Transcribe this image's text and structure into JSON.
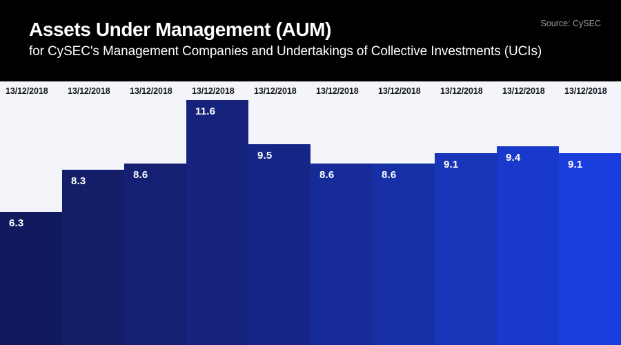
{
  "header": {
    "title": "Assets Under Management (AUM)",
    "subtitle": "for CySEC's Management Companies and Undertakings of Collective Investments (UCIs)",
    "source": "Source: CySEC",
    "background_color": "#000000",
    "text_color": "#ffffff",
    "source_color": "#9b9ea6"
  },
  "chart_data": {
    "type": "bar",
    "title": "Assets Under Management (AUM)",
    "subtitle": "for CySEC's Management Companies and Undertakings of Collective Investments (UCIs)",
    "source": "Source: CySEC",
    "categories": [
      "13/12/2018",
      "13/12/2018",
      "13/12/2018",
      "13/12/2018",
      "13/12/2018",
      "13/12/2018",
      "13/12/2018",
      "13/12/2018",
      "13/12/2018",
      "13/12/2018"
    ],
    "values": [
      6.3,
      8.3,
      8.6,
      11.6,
      9.5,
      8.6,
      8.6,
      9.1,
      9.4,
      9.1
    ],
    "value_labels": [
      "6.3",
      "8.3",
      "8.6",
      "11.6",
      "9.5",
      "8.6",
      "8.6",
      "9.1",
      "9.4",
      "9.1"
    ],
    "bar_colors": [
      "#121a5e",
      "#131d68",
      "#142072",
      "#15237c",
      "#162687",
      "#162b97",
      "#172fa5",
      "#1834b7",
      "#1939ca",
      "#1a3edd"
    ],
    "xlabel": "",
    "ylabel": "",
    "ylim": [
      0,
      12.5
    ],
    "grid": false,
    "legend": false,
    "background": "#f4f5fb",
    "value_label_color": "#ffffff",
    "category_label_color": "#15171e"
  }
}
